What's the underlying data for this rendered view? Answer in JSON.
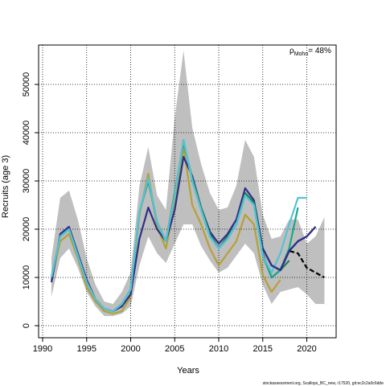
{
  "chart_data": {
    "type": "line",
    "title": "",
    "xlabel": "Years",
    "ylabel": "Recruits (age 3)",
    "xlim": [
      1990,
      2022
    ],
    "ylim": [
      0,
      57000
    ],
    "xticks": [
      1990,
      1995,
      2000,
      2005,
      2010,
      2015,
      2020
    ],
    "yticks": [
      0,
      10000,
      20000,
      30000,
      40000,
      50000
    ],
    "grid": true,
    "annotation": {
      "symbol": "ρ",
      "subscript": "Mohn",
      "text": "= 48%"
    },
    "footer": "stockassessment.org, Scallops_BC_new, r17520, git:ec2c2a0c6dde",
    "band": {
      "x": [
        1991,
        1992,
        1993,
        1994,
        1995,
        1996,
        1997,
        1998,
        1999,
        2000,
        2001,
        2002,
        2003,
        2004,
        2005,
        2006,
        2007,
        2008,
        2009,
        2010,
        2011,
        2012,
        2013,
        2014,
        2015,
        2016,
        2017,
        2018,
        2019,
        2020,
        2021,
        2022
      ],
      "upper": [
        14000,
        26500,
        28000,
        22000,
        14000,
        8500,
        5000,
        4500,
        7000,
        11000,
        29000,
        37000,
        27000,
        24000,
        43000,
        57000,
        41000,
        33500,
        27500,
        24000,
        24500,
        29000,
        38500,
        35000,
        23000,
        18000,
        18500,
        22000,
        22000,
        17000,
        18500,
        22500
      ],
      "lower": [
        6000,
        14000,
        16000,
        12000,
        7000,
        4000,
        2000,
        2000,
        2500,
        4000,
        12500,
        18500,
        15000,
        13000,
        17000,
        21000,
        21000,
        16500,
        13500,
        11000,
        12000,
        14500,
        17000,
        15000,
        8500,
        4500,
        7000,
        7500,
        8000,
        6500,
        4500,
        4500
      ]
    },
    "series": [
      {
        "color": "#b5a03a",
        "x": [
          1991,
          1992,
          1993,
          1994,
          1995,
          1996,
          1997,
          1998,
          1999,
          2000,
          2001,
          2002,
          2003,
          2004,
          2005,
          2006,
          2007,
          2008,
          2009,
          2010,
          2011,
          2012,
          2013,
          2014,
          2015,
          2016,
          2017
        ],
        "y": [
          9500,
          17500,
          19000,
          14000,
          8000,
          5000,
          3000,
          2500,
          3000,
          6000,
          23000,
          31500,
          20500,
          16000,
          25000,
          37000,
          25000,
          21000,
          16000,
          12500,
          15000,
          17500,
          23000,
          21000,
          10500,
          7000,
          9500
        ]
      },
      {
        "color": "#2e2e88",
        "x": [
          1991,
          1992,
          1993,
          1994,
          1995,
          1996,
          1997,
          1998,
          1999,
          2000,
          2001,
          2002,
          2003,
          2004,
          2005,
          2006,
          2007,
          2008,
          2009,
          2010,
          2011,
          2012,
          2013,
          2014,
          2015,
          2016,
          2017,
          2018,
          2019,
          2020,
          2021
        ],
        "y": [
          9000,
          19000,
          20500,
          15000,
          9500,
          5500,
          3500,
          3000,
          4000,
          6500,
          18000,
          24500,
          20000,
          17500,
          24000,
          35000,
          31000,
          24500,
          19500,
          17000,
          19000,
          22000,
          28500,
          26000,
          16000,
          12500,
          11500,
          15500,
          17500,
          18500,
          20500
        ]
      },
      {
        "color": "#1f7a5a",
        "x": [
          1991,
          1992,
          1993,
          1994,
          1995,
          1996,
          1997,
          1998,
          1999,
          2000,
          2001,
          2002,
          2003,
          2004,
          2005,
          2006,
          2007,
          2008,
          2009,
          2010,
          2011,
          2012,
          2013,
          2014,
          2015,
          2016,
          2017,
          2018
        ],
        "y": [
          10000,
          18500,
          20000,
          14500,
          9000,
          5500,
          3500,
          3000,
          4500,
          7500,
          23500,
          30000,
          21500,
          17500,
          27500,
          38000,
          30500,
          24500,
          19000,
          16000,
          18500,
          21000,
          27500,
          25500,
          15000,
          10000,
          11500,
          13500
        ]
      },
      {
        "color": "#1aa88c",
        "x": [
          1991,
          1992,
          1993,
          1994,
          1995,
          1996,
          1997,
          1998,
          1999,
          2000,
          2001,
          2002,
          2003,
          2004,
          2005,
          2006,
          2007,
          2008,
          2009,
          2010,
          2011,
          2012,
          2013,
          2014,
          2015,
          2016,
          2017,
          2018,
          2019
        ],
        "y": [
          10000,
          18500,
          20000,
          14500,
          9000,
          5500,
          3500,
          3000,
          4500,
          7500,
          23500,
          30500,
          21500,
          17500,
          27000,
          38500,
          30000,
          24000,
          18500,
          16000,
          18000,
          21000,
          27000,
          25000,
          14500,
          10000,
          11500,
          16000,
          24500
        ]
      },
      {
        "color": "#55c3d5",
        "x": [
          1991,
          1992,
          1993,
          1994,
          1995,
          1996,
          1997,
          1998,
          1999,
          2000,
          2001,
          2002,
          2003,
          2004,
          2005,
          2006,
          2007,
          2008,
          2009,
          2010,
          2011,
          2012,
          2013,
          2014,
          2015,
          2016,
          2017,
          2018,
          2019,
          2020
        ],
        "y": [
          10000,
          18500,
          20000,
          14500,
          9000,
          5500,
          3500,
          3000,
          4500,
          7500,
          23500,
          30500,
          21500,
          17500,
          27000,
          38500,
          30000,
          24000,
          18500,
          16000,
          18000,
          21000,
          27000,
          25000,
          14500,
          11000,
          15000,
          21000,
          26500,
          26500
        ]
      },
      {
        "color": "#000000",
        "dashed": true,
        "x": [
          2017,
          2018,
          2019,
          2020,
          2021,
          2022
        ],
        "y": [
          11500,
          15500,
          15000,
          12000,
          11000,
          10000
        ]
      },
      {
        "color": "#2e2e88",
        "x": [
          2015,
          2016,
          2017,
          2018,
          2019,
          2020,
          2021
        ],
        "y": [
          16000,
          12500,
          11500,
          15500,
          17500,
          18500,
          20500
        ]
      }
    ]
  }
}
